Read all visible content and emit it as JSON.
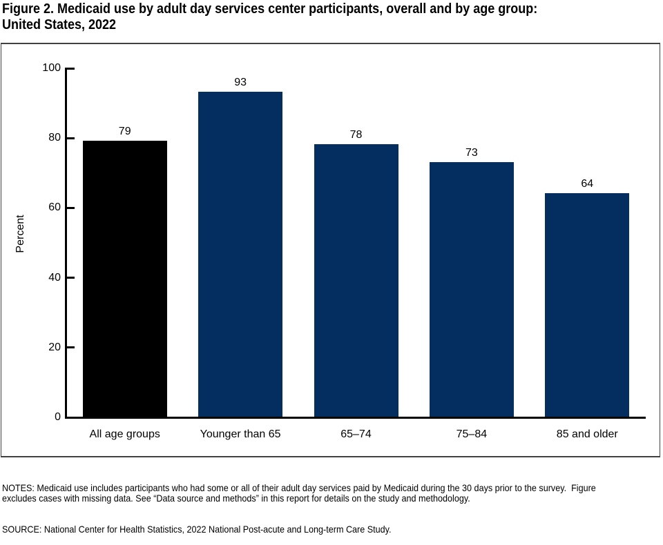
{
  "chart_data": {
    "type": "bar",
    "title": "Figure 2. Medicaid use by adult day services center participants, overall and by age group:\nUnited States, 2022",
    "categories": [
      "All age groups",
      "Younger than 65",
      "65–74",
      "75–84",
      "85 and older"
    ],
    "values": [
      79,
      93,
      78,
      73,
      64
    ],
    "bar_colors": [
      "#000000",
      "#052e60",
      "#052e60",
      "#052e60",
      "#052e60"
    ],
    "xlabel": "",
    "ylabel": "Percent",
    "ylim": [
      0,
      100
    ],
    "yticks": [
      0,
      20,
      40,
      60,
      80,
      100
    ],
    "grid": false,
    "legend_position": "none",
    "value_labels_shown": true
  },
  "footer": {
    "notes": "NOTES: Medicaid use includes participants who had some or all of their adult day services paid by Medicaid during the 30 days prior to the survey.  Figure\nexcludes cases with missing data. See “Data source and methods” in this report for details on the study and methodology.",
    "source": "SOURCE: National Center for Health Statistics, 2022 National Post-acute and Long-term Care Study."
  },
  "colors": {
    "background": "#ffffff",
    "axis": "#000000",
    "frame_border": "#404040",
    "text": "#000000",
    "bar_overall": "#000000",
    "bar_age_group": "#052e60"
  }
}
